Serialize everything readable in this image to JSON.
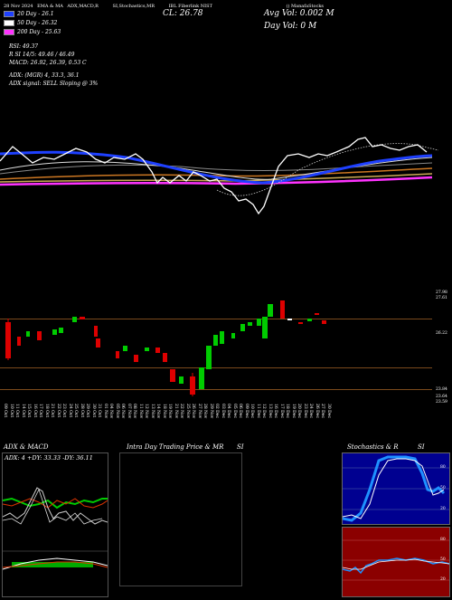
{
  "header": {
    "segments": [
      "28 Nov 2024",
      "EMA & MA",
      "ADX,MACD,R",
      "SI,Stochastics,MR",
      "IBL Fiberlink NIST",
      "",
      "() ManafaStocks"
    ],
    "cl_label": "CL: 26.78",
    "avg_vol": "Avg Vol: 0.002  M",
    "day_vol": "Day Vol: 0   M"
  },
  "legend": [
    {
      "label": "20  Day - 26.1",
      "color": "#1e40ff"
    },
    {
      "label": "50  Day - 26.32",
      "color": "#ffffff"
    },
    {
      "label": "200  Day - 25.63",
      "color": "#ff33ff"
    }
  ],
  "stats": {
    "rsi": "RSI: 49.37",
    "r_line": "R                  SI 14/5: 49.46  / 46.49",
    "macd": "MACD: 26.92,  26.39,  0.53  C",
    "adx": "ADX:                      (MGR) 4,  33.3,  36.1",
    "signal": "ADX  signal: SELL  Sloping @ 3%"
  },
  "price_axis": [
    "27.98",
    "27.61",
    "26.22",
    "23.84",
    "23.64",
    "23.59"
  ],
  "dates": [
    "09 Oct",
    "10 Oct",
    "11 Oct",
    "14 Oct",
    "15 Oct",
    "16 Oct",
    "17 Oct",
    "18 Oct",
    "21 Oct",
    "22 Oct",
    "23 Oct",
    "24 Oct",
    "25 Oct",
    "28 Oct",
    "29 Oct",
    "30 Oct",
    "31 Oct",
    "01 Nov",
    "04 Nov",
    "05 Nov",
    "06 Nov",
    "07 Nov",
    "08 Nov",
    "11 Nov",
    "12 Nov",
    "13 Nov",
    "14 Nov",
    "18 Nov",
    "19 Nov",
    "21 Nov",
    "22 Nov",
    "25 Nov",
    "26 Nov",
    "27 Nov",
    "28 Nov",
    "29 Nov",
    "02 Dec",
    "03 Dec",
    "04 Dec",
    "05 Dec",
    "06 Dec",
    "09 Dec",
    "10 Dec",
    "11 Dec",
    "12 Dec",
    "13 Dec",
    "16 Dec",
    "17 Dec",
    "18 Dec",
    "19 Dec",
    "20 Dec",
    "23 Dec",
    "24 Dec",
    "26 Dec",
    "27 Dec",
    "30 Dec"
  ],
  "panels": {
    "adx_title": "ADX  & MACD",
    "adx_values": "ADX: 4   +DY: 33.33  -DY: 36.11",
    "intraday_title": "Intra  Day Trading Price  & MR",
    "intraday_si": "SI",
    "stoch_title": "Stochastics & R",
    "stoch_si": "SI",
    "stoch_axis": [
      "80",
      "50",
      "20"
    ],
    "rsi_axis": [
      "80",
      "50",
      "20"
    ]
  },
  "colors": {
    "up": "#00cc00",
    "down": "#dd0000",
    "ma20": "#1e40ff",
    "ma50": "#ffffff",
    "ma200": "#ff33ff"
  }
}
